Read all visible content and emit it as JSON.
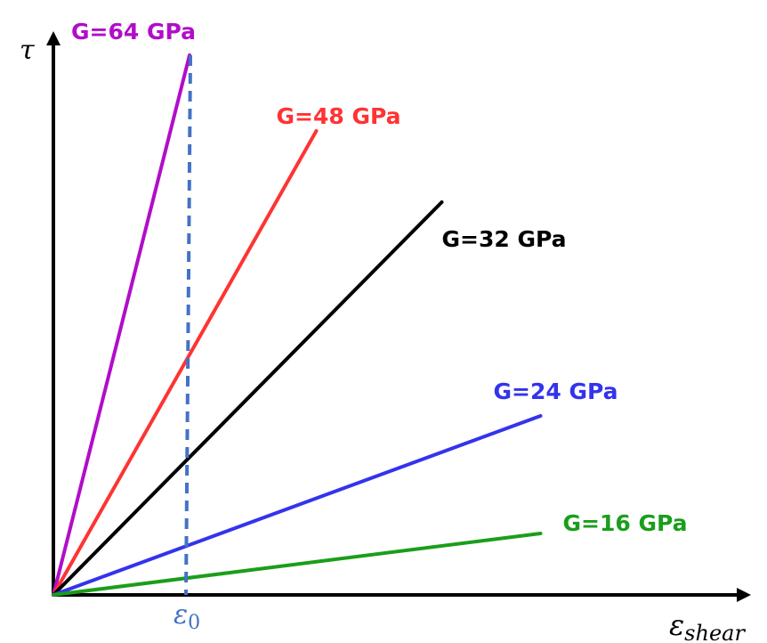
{
  "chart_data": {
    "type": "line",
    "xlabel": "ε_shear",
    "ylabel": "τ",
    "marker": {
      "label": "ε_0",
      "x": 1,
      "color": "#4472c4"
    },
    "series": [
      {
        "name": "G=64 GPa",
        "color": "#b10dc9",
        "x": [
          0,
          1.02
        ],
        "y": [
          0,
          6.06
        ]
      },
      {
        "name": "G=48 GPa",
        "color": "#ff3333",
        "x": [
          0,
          1.97
        ],
        "y": [
          0,
          5.21
        ]
      },
      {
        "name": "G=32 GPa",
        "color": "#000000",
        "x": [
          0,
          2.91
        ],
        "y": [
          0,
          4.41
        ]
      },
      {
        "name": "G=24 GPa",
        "color": "#3333ee",
        "x": [
          0,
          3.65
        ],
        "y": [
          0,
          2.01
        ]
      },
      {
        "name": "G=16 GPa",
        "color": "#1a9e1a",
        "x": [
          0,
          3.65
        ],
        "y": [
          0,
          0.69
        ]
      }
    ]
  }
}
